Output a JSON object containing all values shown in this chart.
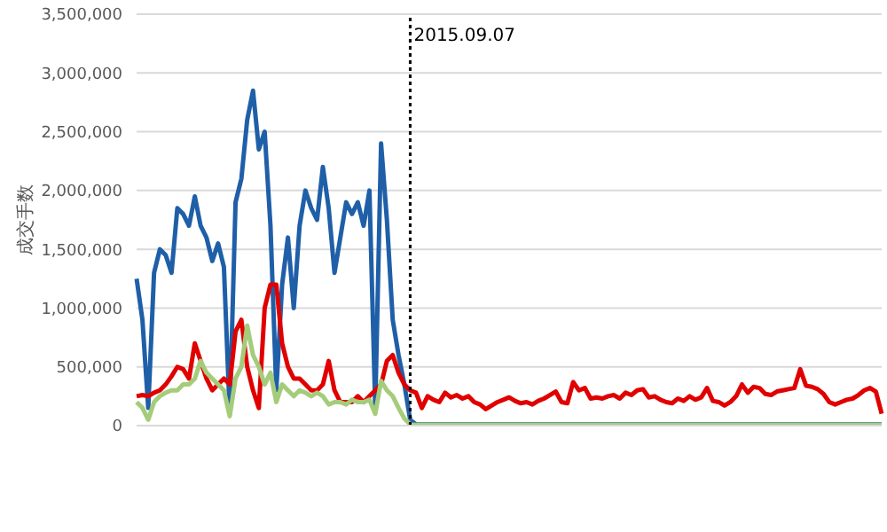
{
  "chart_data": {
    "type": "line",
    "ylabel": "成交手数",
    "categories": [
      null,
      null,
      null,
      null,
      null,
      null,
      null,
      null,
      null,
      null,
      null,
      null,
      null,
      null,
      null,
      null,
      null,
      null,
      null,
      null,
      null,
      null,
      null,
      null,
      null,
      null,
      null,
      null,
      null,
      null,
      null,
      null,
      null,
      null,
      null,
      null,
      null,
      null,
      null,
      null,
      null,
      null,
      null,
      null,
      null,
      null,
      null,
      null,
      null,
      null,
      null,
      null,
      null,
      null,
      null,
      null,
      null,
      null,
      null,
      null,
      null,
      null,
      null,
      null,
      null,
      null,
      null,
      null,
      null,
      null,
      null,
      null,
      null,
      null,
      null,
      null,
      null,
      null,
      null,
      null,
      null,
      null,
      null,
      null,
      null,
      null,
      null,
      null,
      null,
      null,
      null,
      null,
      null,
      null,
      null,
      null,
      null,
      null,
      null,
      null,
      null,
      null,
      null,
      null,
      null,
      null,
      null,
      null,
      null,
      null,
      null,
      null,
      null,
      null,
      null,
      null,
      null,
      null,
      null,
      null,
      null,
      null,
      null,
      null,
      null,
      null,
      null,
      null,
      null
    ],
    "series": [
      {
        "color": "#1f5fa8",
        "values": [
          1250000,
          900000,
          150000,
          1300000,
          1500000,
          1450000,
          1300000,
          1850000,
          1800000,
          1700000,
          1950000,
          1700000,
          1600000,
          1400000,
          1550000,
          1350000,
          100000,
          1900000,
          2100000,
          2600000,
          2850000,
          2350000,
          2500000,
          1700000,
          300000,
          1200000,
          1600000,
          1000000,
          1700000,
          2000000,
          1850000,
          1750000,
          2200000,
          1850000,
          1300000,
          1600000,
          1900000,
          1800000,
          1900000,
          1700000,
          2000000,
          150000,
          2400000,
          1750000,
          900000,
          600000,
          350000,
          50000,
          10000,
          10000,
          10000,
          10000,
          10000,
          10000,
          10000,
          10000,
          10000,
          10000,
          10000,
          10000,
          10000,
          10000,
          10000,
          10000,
          10000,
          10000,
          10000,
          10000,
          10000,
          10000,
          10000,
          10000,
          10000,
          10000,
          10000,
          10000,
          10000,
          10000,
          10000,
          10000,
          10000,
          10000,
          10000,
          10000,
          10000,
          10000,
          10000,
          10000,
          10000,
          10000,
          10000,
          10000,
          10000,
          10000,
          10000,
          10000,
          10000,
          10000,
          10000,
          10000,
          10000,
          10000,
          10000,
          10000,
          10000,
          10000,
          10000,
          10000,
          10000,
          10000,
          10000,
          10000,
          10000,
          10000,
          10000,
          10000,
          10000,
          10000,
          10000,
          10000,
          10000,
          10000,
          10000,
          10000,
          10000,
          10000,
          10000,
          10000,
          10000
        ]
      },
      {
        "color": "#e00000",
        "values": [
          250000,
          260000,
          250000,
          280000,
          300000,
          350000,
          420000,
          500000,
          480000,
          400000,
          700000,
          550000,
          400000,
          300000,
          350000,
          400000,
          350000,
          800000,
          900000,
          500000,
          300000,
          150000,
          1000000,
          1200000,
          1200000,
          700000,
          500000,
          400000,
          400000,
          350000,
          300000,
          300000,
          350000,
          550000,
          300000,
          200000,
          200000,
          200000,
          250000,
          200000,
          250000,
          300000,
          350000,
          550000,
          600000,
          450000,
          350000,
          300000,
          280000,
          150000,
          250000,
          220000,
          200000,
          280000,
          240000,
          260000,
          230000,
          250000,
          200000,
          180000,
          140000,
          170000,
          200000,
          220000,
          240000,
          210000,
          190000,
          200000,
          180000,
          210000,
          230000,
          260000,
          290000,
          200000,
          190000,
          370000,
          300000,
          320000,
          230000,
          240000,
          230000,
          250000,
          260000,
          230000,
          280000,
          260000,
          300000,
          310000,
          240000,
          250000,
          220000,
          200000,
          190000,
          230000,
          210000,
          250000,
          220000,
          240000,
          320000,
          210000,
          200000,
          170000,
          200000,
          250000,
          350000,
          280000,
          330000,
          320000,
          270000,
          260000,
          290000,
          300000,
          310000,
          320000,
          480000,
          340000,
          330000,
          310000,
          270000,
          200000,
          180000,
          200000,
          220000,
          230000,
          260000,
          300000,
          320000,
          290000,
          100000
        ]
      },
      {
        "color": "#a4cc7a",
        "values": [
          200000,
          150000,
          50000,
          200000,
          250000,
          280000,
          300000,
          300000,
          350000,
          350000,
          400000,
          550000,
          450000,
          400000,
          350000,
          300000,
          80000,
          400000,
          500000,
          850000,
          600000,
          500000,
          350000,
          450000,
          200000,
          350000,
          300000,
          250000,
          300000,
          280000,
          250000,
          280000,
          250000,
          180000,
          200000,
          200000,
          180000,
          220000,
          200000,
          200000,
          220000,
          100000,
          380000,
          300000,
          250000,
          150000,
          60000,
          10000,
          5000,
          5000,
          5000,
          5000,
          5000,
          5000,
          5000,
          5000,
          5000,
          5000,
          5000,
          5000,
          5000,
          5000,
          5000,
          5000,
          5000,
          5000,
          5000,
          5000,
          5000,
          5000,
          5000,
          5000,
          5000,
          5000,
          5000,
          5000,
          5000,
          5000,
          5000,
          5000,
          5000,
          5000,
          5000,
          5000,
          5000,
          5000,
          5000,
          5000,
          5000,
          5000,
          5000,
          5000,
          5000,
          5000,
          5000,
          5000,
          5000,
          5000,
          5000,
          5000,
          5000,
          5000,
          5000,
          5000,
          5000,
          5000,
          5000,
          5000,
          5000,
          5000,
          5000,
          5000,
          5000,
          5000,
          5000,
          5000,
          5000,
          5000,
          5000,
          5000,
          5000,
          5000,
          5000,
          5000,
          5000,
          5000,
          5000,
          5000,
          5000
        ]
      }
    ],
    "ylim": [
      0,
      3500000
    ],
    "yticks": [
      0,
      {
        "value": 500000,
        "label": "500,000"
      },
      {
        "value": 1000000,
        "label": "1,000,000"
      },
      {
        "value": 1500000,
        "label": "1,500,000"
      },
      {
        "value": 2000000,
        "label": "2,000,000"
      },
      {
        "value": 2500000,
        "label": "2,500,000"
      },
      {
        "value": 3000000,
        "label": "3,000,000"
      },
      {
        "value": 3500000,
        "label": "3,500,000"
      }
    ],
    "grid": "y",
    "marker": "none",
    "line_style": "solid",
    "tick_labels": "y",
    "annotations": [
      "2015.09.07"
    ]
  }
}
